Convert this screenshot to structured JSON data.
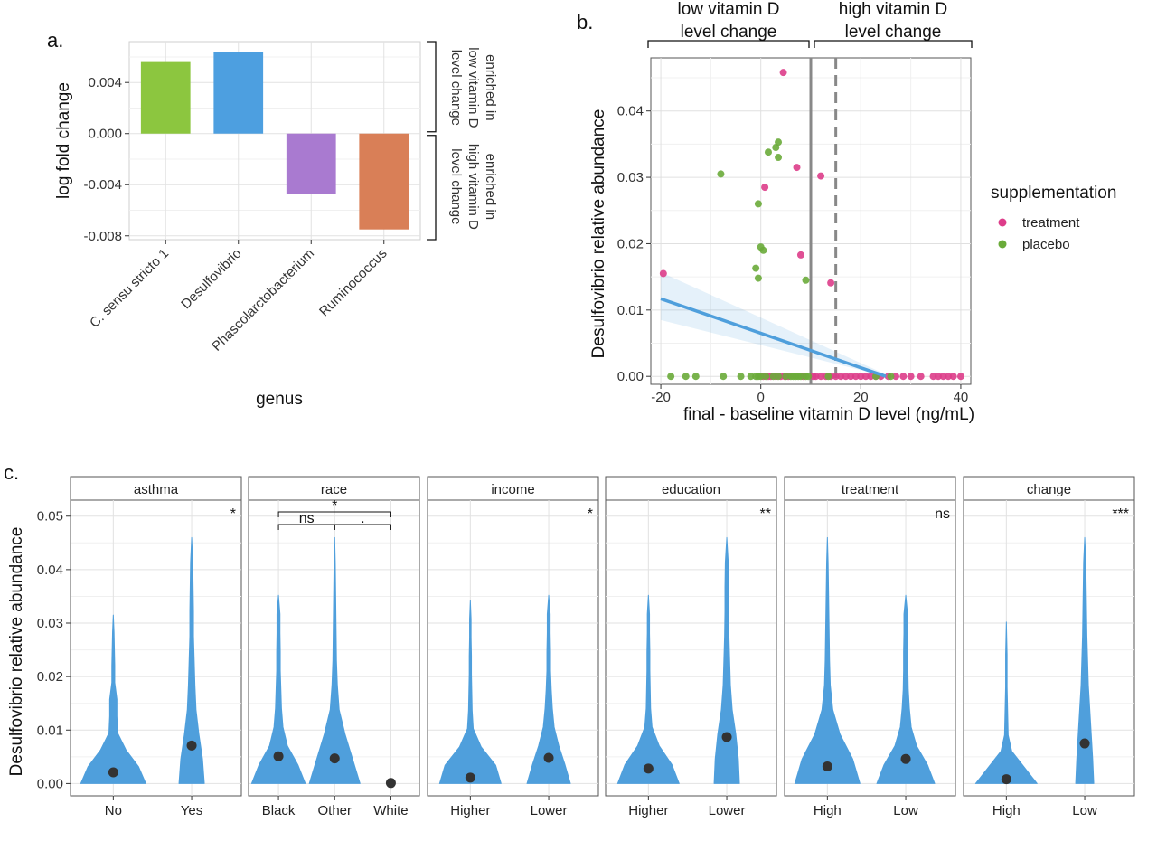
{
  "panels": {
    "a": "a.",
    "b": "b.",
    "c": "c."
  },
  "colors": {
    "bar_green": "#8cc63f",
    "bar_blue": "#4d9fe0",
    "bar_purple": "#a97ad0",
    "bar_orange": "#d97f57",
    "treatment": "#dd3d8a",
    "placebo": "#6aab3a",
    "trend": "#4f9fdc",
    "violin": "#4f9fdc"
  },
  "chart_data": [
    {
      "type": "bar",
      "panel": "a",
      "categories": [
        "C. sensu stricto 1",
        "Desulfovibrio",
        "Phascolarctobacterium",
        "Ruminococcus"
      ],
      "values": [
        0.0056,
        0.0064,
        -0.0047,
        -0.0075
      ],
      "xlabel": "genus",
      "ylabel": "log fold change",
      "ylim": [
        -0.0083,
        0.0072
      ],
      "yticks": [
        0.004,
        0.0,
        -0.004,
        -0.008
      ],
      "ytick_labels": [
        "0.004",
        "0.000",
        "-0.004",
        "-0.008"
      ],
      "brackets": [
        {
          "label": [
            "enriched in",
            "low vitamin D",
            "level change"
          ]
        },
        {
          "label": [
            "enriched in",
            "high vitamin D",
            "level change"
          ]
        }
      ],
      "grid": true
    },
    {
      "type": "scatter",
      "panel": "b",
      "xlabel": "final - baseline vitamin D level (ng/mL)",
      "ylabel": "Desulfovibrio relative abundance",
      "xlim": [
        -22,
        42
      ],
      "ylim": [
        -0.0012,
        0.048
      ],
      "xticks": [
        -20,
        0,
        20,
        40
      ],
      "yticks": [
        0.0,
        0.01,
        0.02,
        0.03,
        0.04
      ],
      "ytick_labels": [
        "0.00",
        "0.01",
        "0.02",
        "0.03",
        "0.04"
      ],
      "vlines": [
        {
          "x": 10,
          "style": "solid"
        },
        {
          "x": 15,
          "style": "dashed"
        }
      ],
      "top_brackets": [
        {
          "label": [
            "low vitamin D",
            "level change"
          ],
          "x_from": -22,
          "x_to": 10
        },
        {
          "label": [
            "high vitamin D",
            "level change"
          ],
          "x_from": 10,
          "x_to": 42
        }
      ],
      "legend": {
        "title": "supplementation",
        "entries": [
          "treatment",
          "placebo"
        ],
        "placement": "right"
      },
      "series": [
        {
          "name": "treatment",
          "points": [
            [
              -19.5,
              0.0155
            ],
            [
              0.8,
              0.0285
            ],
            [
              4.5,
              0.0458
            ],
            [
              7.2,
              0.0315
            ],
            [
              8,
              0.0183
            ],
            [
              12,
              0.0302
            ],
            [
              14,
              0.0141
            ],
            [
              0.5,
              0
            ],
            [
              1.5,
              0
            ],
            [
              2,
              0
            ],
            [
              3,
              0
            ],
            [
              4,
              0
            ],
            [
              4.8,
              0
            ],
            [
              5.5,
              0
            ],
            [
              8.5,
              0
            ],
            [
              10.5,
              0
            ],
            [
              11,
              0
            ],
            [
              12,
              0
            ],
            [
              13,
              0
            ],
            [
              14,
              0
            ],
            [
              15,
              0
            ],
            [
              16,
              0
            ],
            [
              17,
              0
            ],
            [
              18,
              0
            ],
            [
              19,
              0
            ],
            [
              20,
              0
            ],
            [
              21,
              0
            ],
            [
              22,
              0
            ],
            [
              23,
              0
            ],
            [
              24,
              0
            ],
            [
              25.5,
              0
            ],
            [
              27,
              0
            ],
            [
              28.5,
              0
            ],
            [
              30,
              0
            ],
            [
              32,
              0
            ],
            [
              34.5,
              0
            ],
            [
              35.5,
              0
            ],
            [
              36.5,
              0
            ],
            [
              37.5,
              0
            ],
            [
              38.5,
              0
            ],
            [
              40,
              0
            ]
          ]
        },
        {
          "name": "placebo",
          "points": [
            [
              -8,
              0.0305
            ],
            [
              -1,
              0.0163
            ],
            [
              -0.5,
              0.0148
            ],
            [
              -0.5,
              0.026
            ],
            [
              0,
              0.0195
            ],
            [
              0.5,
              0.019
            ],
            [
              1.5,
              0.0338
            ],
            [
              3,
              0.0345
            ],
            [
              3.5,
              0.0353
            ],
            [
              3.5,
              0.033
            ],
            [
              9,
              0.0145
            ],
            [
              -18,
              0
            ],
            [
              -15,
              0
            ],
            [
              -13,
              0
            ],
            [
              -7.5,
              0
            ],
            [
              -4,
              0
            ],
            [
              -2,
              0
            ],
            [
              -1,
              0
            ],
            [
              -0.5,
              0
            ],
            [
              0,
              0
            ],
            [
              1,
              0
            ],
            [
              2.5,
              0
            ],
            [
              3.5,
              0
            ],
            [
              5,
              0
            ],
            [
              6,
              0
            ],
            [
              6.5,
              0
            ],
            [
              7,
              0
            ],
            [
              7.5,
              0
            ],
            [
              8,
              0
            ],
            [
              9,
              0
            ],
            [
              9.5,
              0
            ],
            [
              13.5,
              0
            ],
            [
              23,
              0
            ],
            [
              26,
              0
            ]
          ]
        }
      ],
      "trend": {
        "x": [
          -20,
          25
        ],
        "y": [
          0.0117,
          0.0
        ],
        "band_lower": [
          0.0085,
          0.0
        ],
        "band_upper": [
          0.0157,
          0.0003
        ]
      },
      "grid": true
    },
    {
      "type": "violin",
      "panel": "c",
      "ylabel": "Desulfovibrio relative abundance",
      "ylim": [
        -0.0023,
        0.053
      ],
      "yticks": [
        0.0,
        0.01,
        0.02,
        0.03,
        0.04,
        0.05
      ],
      "ytick_labels": [
        "0.00",
        "0.01",
        "0.02",
        "0.03",
        "0.04",
        "0.05"
      ],
      "facets": [
        {
          "strip": "asthma",
          "signif": "*",
          "groups": [
            {
              "label": "No",
              "mean": 0.0021,
              "max": 0.0315,
              "widths": [
                0.9,
                0.7,
                0.35,
                0.12,
                0.1,
                0.1,
                0.04,
                0.04,
                0.03,
                0.02,
                0.0
              ]
            },
            {
              "label": "Yes",
              "mean": 0.0071,
              "max": 0.046,
              "widths": [
                0.35,
                0.3,
                0.2,
                0.12,
                0.09,
                0.07,
                0.05,
                0.05,
                0.04,
                0.03,
                0.0
              ]
            }
          ]
        },
        {
          "strip": "race",
          "signif": "",
          "groups": [
            {
              "label": "Black",
              "mean": 0.0051,
              "max": 0.0352,
              "widths": [
                0.9,
                0.65,
                0.3,
                0.15,
                0.1,
                0.08,
                0.06,
                0.06,
                0.05,
                0.05,
                0.0
              ]
            },
            {
              "label": "Other",
              "mean": 0.0047,
              "max": 0.046,
              "widths": [
                0.85,
                0.6,
                0.35,
                0.15,
                0.09,
                0.06,
                0.05,
                0.04,
                0.03,
                0.02,
                0.0
              ]
            },
            {
              "label": "White",
              "mean": 0.0001,
              "max": 0.0,
              "widths": []
            }
          ],
          "comparisons": [
            {
              "label": "*",
              "from": 0,
              "to": 2,
              "level": 2
            },
            {
              "label": "ns",
              "from": 0,
              "to": 1,
              "level": 1
            },
            {
              "label": ".",
              "from": 1,
              "to": 2,
              "level": 1
            }
          ]
        },
        {
          "strip": "income",
          "signif": "*",
          "groups": [
            {
              "label": "Higher",
              "mean": 0.0011,
              "max": 0.0342,
              "widths": [
                0.85,
                0.7,
                0.3,
                0.08,
                0.05,
                0.04,
                0.03,
                0.03,
                0.02,
                0.02,
                0.0
              ]
            },
            {
              "label": "Lower",
              "mean": 0.0048,
              "max": 0.0352,
              "widths": [
                0.6,
                0.45,
                0.28,
                0.15,
                0.1,
                0.07,
                0.05,
                0.05,
                0.04,
                0.04,
                0.0
              ]
            }
          ]
        },
        {
          "strip": "education",
          "signif": "**",
          "groups": [
            {
              "label": "Higher",
              "mean": 0.0028,
              "max": 0.0352,
              "widths": [
                0.85,
                0.65,
                0.3,
                0.1,
                0.06,
                0.05,
                0.04,
                0.04,
                0.03,
                0.03,
                0.0
              ]
            },
            {
              "label": "Lower",
              "mean": 0.0087,
              "max": 0.046,
              "widths": [
                0.35,
                0.32,
                0.25,
                0.15,
                0.1,
                0.08,
                0.06,
                0.05,
                0.05,
                0.04,
                0.0
              ]
            }
          ]
        },
        {
          "strip": "treatment",
          "signif": "ns",
          "groups": [
            {
              "label": "High",
              "mean": 0.0032,
              "max": 0.046,
              "widths": [
                0.9,
                0.7,
                0.35,
                0.15,
                0.08,
                0.06,
                0.05,
                0.04,
                0.03,
                0.02,
                0.0
              ]
            },
            {
              "label": "Low",
              "mean": 0.0046,
              "max": 0.0352,
              "widths": [
                0.8,
                0.6,
                0.3,
                0.15,
                0.1,
                0.07,
                0.06,
                0.06,
                0.05,
                0.05,
                0.0
              ]
            }
          ]
        },
        {
          "strip": "change",
          "signif": "***",
          "groups": [
            {
              "label": "High",
              "mean": 0.0008,
              "max": 0.0302,
              "widths": [
                0.85,
                0.5,
                0.15,
                0.05,
                0.04,
                0.03,
                0.02,
                0.02,
                0.02,
                0.01,
                0.0
              ]
            },
            {
              "label": "Low",
              "mean": 0.0075,
              "max": 0.046,
              "widths": [
                0.25,
                0.22,
                0.18,
                0.14,
                0.1,
                0.08,
                0.06,
                0.05,
                0.04,
                0.03,
                0.0
              ]
            }
          ]
        }
      ]
    }
  ]
}
